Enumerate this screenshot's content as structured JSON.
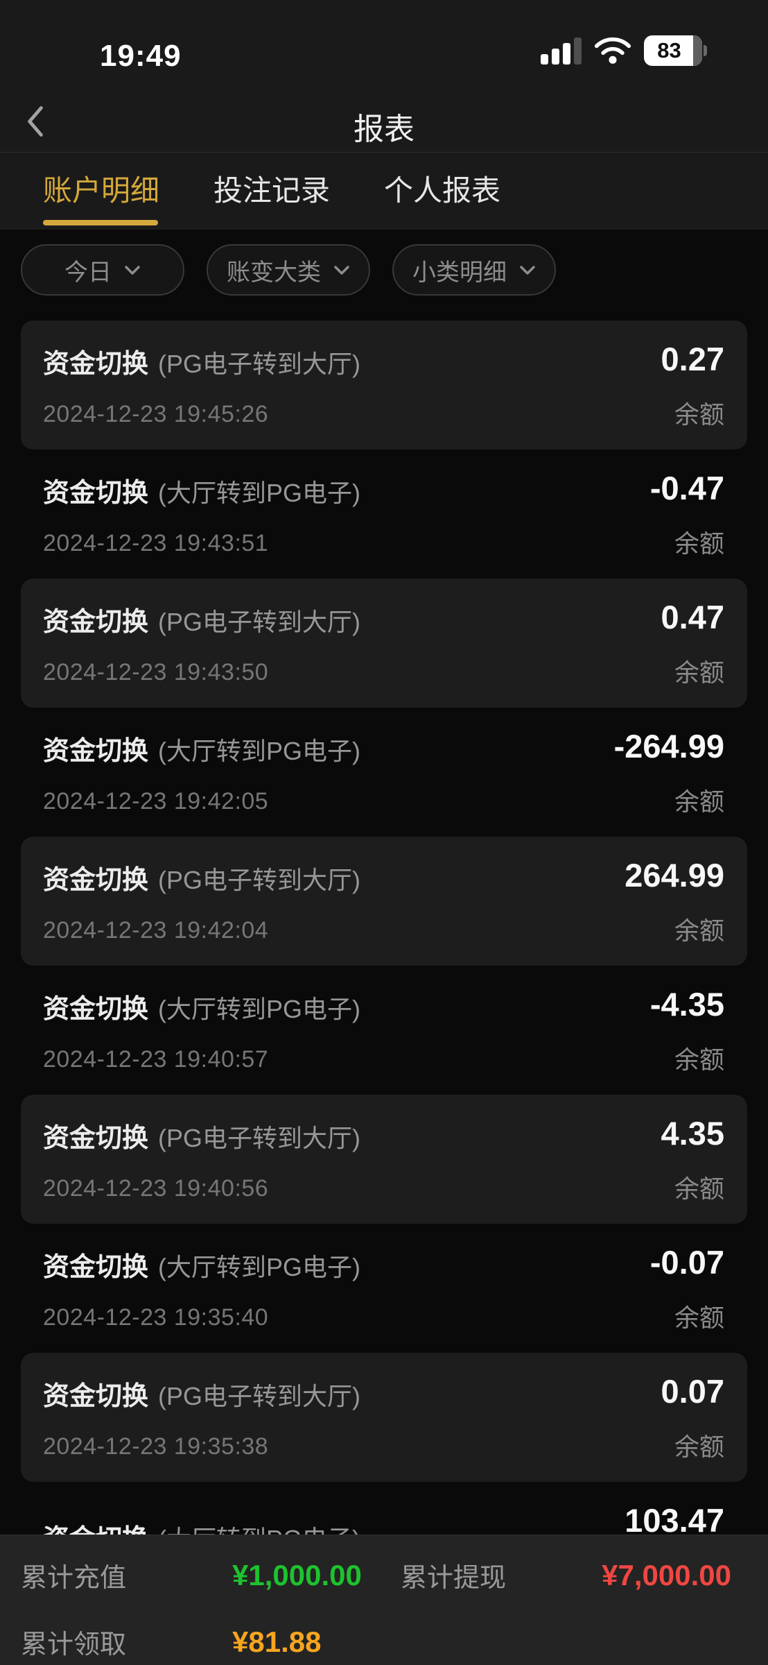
{
  "status_bar": {
    "time": "19:49",
    "battery_percent": "83"
  },
  "header": {
    "title": "报表"
  },
  "tabs": [
    {
      "id": "account-details",
      "label": "账户明细",
      "active": true
    },
    {
      "id": "bet-records",
      "label": "投注记录",
      "active": false
    },
    {
      "id": "personal-report",
      "label": "个人报表",
      "active": false
    }
  ],
  "filters": [
    {
      "id": "date-today",
      "label": "今日"
    },
    {
      "id": "change-major-category",
      "label": "账变大类"
    },
    {
      "id": "subcategory-detail",
      "label": "小类明细"
    }
  ],
  "list": {
    "balance_label": "余额",
    "transactions": [
      {
        "type": "资金切换",
        "detail": "(PG电子转到大厅)",
        "time": "2024-12-23 19:45:26",
        "amount": "0.27"
      },
      {
        "type": "资金切换",
        "detail": "(大厅转到PG电子)",
        "time": "2024-12-23 19:43:51",
        "amount": "-0.47"
      },
      {
        "type": "资金切换",
        "detail": "(PG电子转到大厅)",
        "time": "2024-12-23 19:43:50",
        "amount": "0.47"
      },
      {
        "type": "资金切换",
        "detail": "(大厅转到PG电子)",
        "time": "2024-12-23 19:42:05",
        "amount": "-264.99"
      },
      {
        "type": "资金切换",
        "detail": "(PG电子转到大厅)",
        "time": "2024-12-23 19:42:04",
        "amount": "264.99"
      },
      {
        "type": "资金切换",
        "detail": "(大厅转到PG电子)",
        "time": "2024-12-23 19:40:57",
        "amount": "-4.35"
      },
      {
        "type": "资金切换",
        "detail": "(PG电子转到大厅)",
        "time": "2024-12-23 19:40:56",
        "amount": "4.35"
      },
      {
        "type": "资金切换",
        "detail": "(大厅转到PG电子)",
        "time": "2024-12-23 19:35:40",
        "amount": "-0.07"
      },
      {
        "type": "资金切换",
        "detail": "(PG电子转到大厅)",
        "time": "2024-12-23 19:35:38",
        "amount": "0.07"
      },
      {
        "type": "资金切换",
        "detail": "(大厅转到PG电子)",
        "time": "",
        "amount": "103.47"
      }
    ]
  },
  "summary": {
    "recharge_label": "累计充值",
    "recharge_value": "¥1,000.00",
    "withdraw_label": "累计提现",
    "withdraw_value": "¥7,000.00",
    "claim_label": "累计领取",
    "claim_value": "¥81.88"
  },
  "colors": {
    "accent_gold": "#d4a83b",
    "recharge_green": "#1dc32e",
    "withdraw_red": "#ef4742",
    "claim_orange": "#f7a51f",
    "card_bg": "#1d1d1d",
    "page_bg": "#0a0a0a",
    "footer_bg": "#242424"
  }
}
